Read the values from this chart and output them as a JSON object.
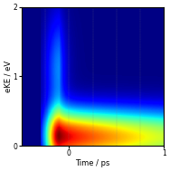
{
  "title": "",
  "xlabel": "Time / ps",
  "ylabel": "eKE / eV",
  "xlim": [
    -0.5,
    1.0
  ],
  "ylim": [
    0,
    2
  ],
  "xticks": [
    0,
    1
  ],
  "yticks": [
    0,
    1,
    2
  ],
  "t0": -0.1,
  "sigma_t": 0.1,
  "tau_fast": 0.06,
  "tau_slow": 2.0,
  "colormap": "jet",
  "gridline_times": [
    -0.25,
    0,
    0.25,
    0.5,
    0.75,
    1.0
  ]
}
